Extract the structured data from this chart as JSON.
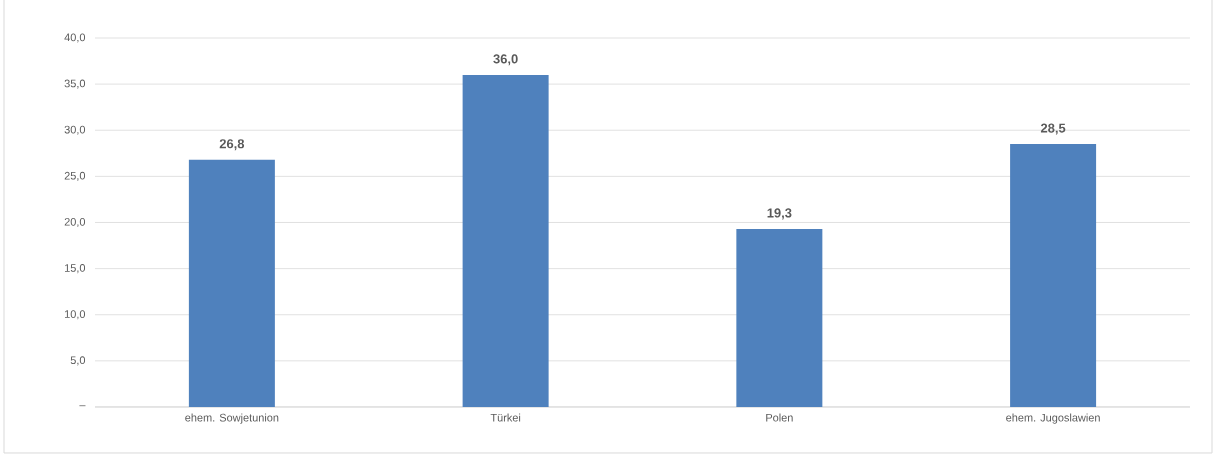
{
  "chart_data": {
    "type": "bar",
    "categories": [
      "ehem. Sowjetunion",
      "Türkei",
      "Polen",
      "ehem. Jugoslawien"
    ],
    "values": [
      26.8,
      36.0,
      19.3,
      28.5
    ],
    "value_labels": [
      "26,8",
      "36,0",
      "19,3",
      "28,5"
    ],
    "color": "#4f81bd",
    "ylim": [
      0,
      40
    ],
    "yticks": [
      {
        "value": 0,
        "label": "–"
      },
      {
        "value": 5,
        "label": "5,0"
      },
      {
        "value": 10,
        "label": "10,0"
      },
      {
        "value": 15,
        "label": "15,0"
      },
      {
        "value": 20,
        "label": "20,0"
      },
      {
        "value": 25,
        "label": "25,0"
      },
      {
        "value": 30,
        "label": "30,0"
      },
      {
        "value": 35,
        "label": "35,0"
      },
      {
        "value": 40,
        "label": "40,0"
      }
    ],
    "grid": "y"
  }
}
